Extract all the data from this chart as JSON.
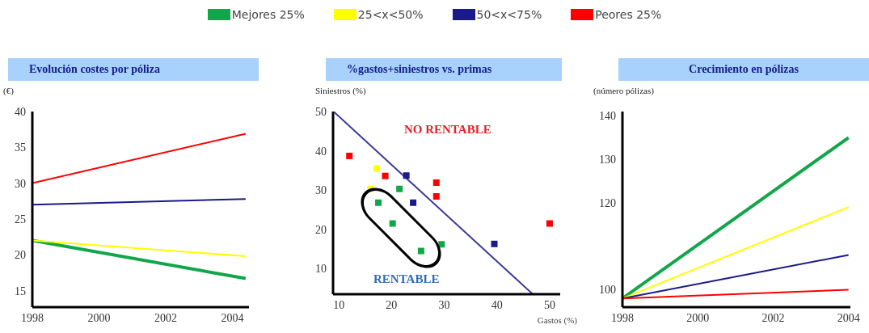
{
  "chart_data": [
    {
      "type": "line",
      "title": "Evolución costes por póliza",
      "ylabel": "(€)",
      "x": [
        1998,
        2004.4
      ],
      "xlim": [
        1998,
        2004.5
      ],
      "xticks": [
        1998,
        2000,
        2002,
        2004
      ],
      "ylim": [
        12.7,
        40
      ],
      "yticks": [
        15,
        20,
        25,
        30,
        35,
        40
      ],
      "grid": false,
      "legend": "top",
      "marker": "none",
      "line_style": "solid",
      "series": [
        {
          "name": "Mejores 25%",
          "color": "#12a64a",
          "values": [
            22,
            16.7
          ]
        },
        {
          "name": "25<x<50%",
          "color": "#ffff00",
          "values": [
            22,
            19.8
          ]
        },
        {
          "name": "50<x<75%",
          "color": "#1a1a8c",
          "values": [
            27,
            27.8
          ]
        },
        {
          "name": "Peores 25%",
          "color": "#ff0000",
          "values": [
            30,
            36.9
          ]
        }
      ]
    },
    {
      "type": "scatter",
      "title": "%gastos+siniestros vs. primas",
      "xlabel": "Gastos (%)",
      "ylabel": "Siniestros (%)",
      "xlim": [
        8.9,
        52
      ],
      "xticks": [
        10,
        20,
        30,
        40,
        50
      ],
      "ylim": [
        3.5,
        50
      ],
      "yticks": [
        10,
        20,
        30,
        40,
        50
      ],
      "grid": false,
      "marker": "square",
      "annotations": [
        "NO RENTABLE",
        "RENTABLE"
      ],
      "series": [
        {
          "color": "#12a64a",
          "x": [
            21.5,
            17.5,
            20.2,
            25.6,
            29.5
          ],
          "values": [
            30.3,
            26.8,
            21.5,
            14.5,
            16.2
          ]
        },
        {
          "color": "#ffff00",
          "x": [
            17.2,
            16.0
          ],
          "values": [
            35.5,
            30.3
          ]
        },
        {
          "color": "#1a1a8c",
          "x": [
            22.8,
            24.1,
            39.5
          ],
          "values": [
            33.7,
            26.8,
            16.3
          ]
        },
        {
          "color": "#ff0000",
          "x": [
            12.0,
            18.8,
            28.5,
            28.5,
            50.0
          ],
          "values": [
            38.7,
            33.6,
            31.9,
            28.4,
            21.5
          ]
        },
        {
          "type": "line",
          "marker": "none",
          "color": "#3a3a9c",
          "x": [
            9,
            46.8
          ],
          "values": [
            50,
            3.5
          ]
        }
      ]
    },
    {
      "type": "line",
      "title": "Crecimiento en pólizas",
      "ylabel": "(número pólizas)",
      "x": [
        1998,
        2004
      ],
      "xlim": [
        1998,
        2004.05
      ],
      "xticks": [
        1998,
        2000,
        2002,
        2004
      ],
      "ylim": [
        96,
        141
      ],
      "yticks": [
        100,
        120,
        130,
        140
      ],
      "grid": false,
      "marker": "none",
      "line_style": "solid",
      "series": [
        {
          "color": "#12a64a",
          "values": [
            98,
            135
          ]
        },
        {
          "color": "#ffff00",
          "values": [
            98,
            119
          ]
        },
        {
          "color": "#1a1a8c",
          "values": [
            98,
            108
          ]
        },
        {
          "color": "#ff0000",
          "values": [
            98,
            100
          ]
        }
      ]
    }
  ]
}
